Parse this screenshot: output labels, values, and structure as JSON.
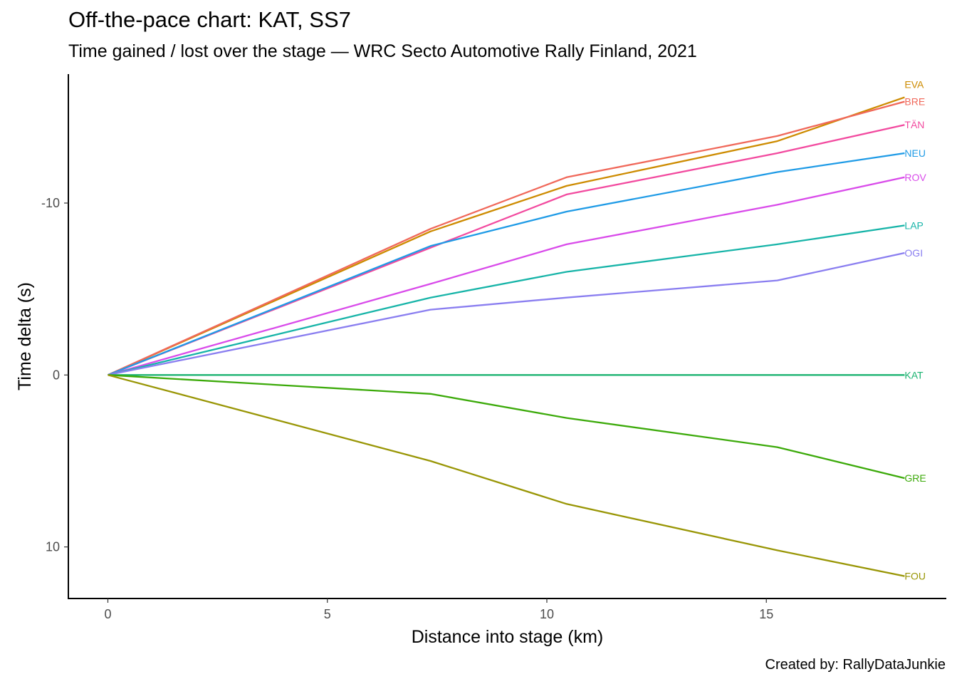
{
  "title": "Off-the-pace chart: KAT, SS7",
  "subtitle": "Time gained / lost over the stage — WRC Secto Automotive Rally Finland, 2021",
  "caption": "Created by: RallyDataJunkie",
  "chart_data": {
    "type": "line",
    "xlabel": "Distance into stage (km)",
    "ylabel": "Time delta (s)",
    "xlim": [
      -0.9,
      19.1
    ],
    "ylim": [
      -17.5,
      13.0
    ],
    "y_reversed": true,
    "grid": false,
    "legend": "none",
    "x_ticks": [
      0,
      5,
      10,
      15
    ],
    "y_ticks": [
      -10,
      0,
      10
    ],
    "x": [
      0,
      7.35,
      10.45,
      15.25,
      18.15
    ],
    "series": [
      {
        "name": "EVA",
        "color": "#CD8B00",
        "values": [
          0,
          -8.35,
          -11.0,
          -13.6,
          -16.15
        ]
      },
      {
        "name": "BRE",
        "color": "#F0685A",
        "values": [
          0,
          -8.5,
          -11.5,
          -13.9,
          -15.9
        ]
      },
      {
        "name": "TÄN",
        "color": "#F24A9F",
        "values": [
          0,
          -7.4,
          -10.5,
          -12.9,
          -14.55
        ]
      },
      {
        "name": "NEU",
        "color": "#1F9BE6",
        "values": [
          0,
          -7.5,
          -9.5,
          -11.8,
          -12.9
        ]
      },
      {
        "name": "ROV",
        "color": "#D94BEA",
        "values": [
          0,
          -5.3,
          -7.6,
          -9.9,
          -11.5
        ]
      },
      {
        "name": "LAP",
        "color": "#17B4A8",
        "values": [
          0,
          -4.5,
          -6.0,
          -7.6,
          -8.7
        ]
      },
      {
        "name": "OGI",
        "color": "#8A7EF0",
        "values": [
          0,
          -3.8,
          -4.5,
          -5.5,
          -7.1
        ]
      },
      {
        "name": "KAT",
        "color": "#1BB371",
        "values": [
          0,
          0,
          0,
          0,
          0
        ]
      },
      {
        "name": "GRE",
        "color": "#3CAA0A",
        "values": [
          0,
          1.1,
          2.5,
          4.2,
          6.0
        ]
      },
      {
        "name": "FOU",
        "color": "#999606",
        "values": [
          0,
          5.0,
          7.5,
          10.2,
          11.7
        ]
      }
    ]
  }
}
